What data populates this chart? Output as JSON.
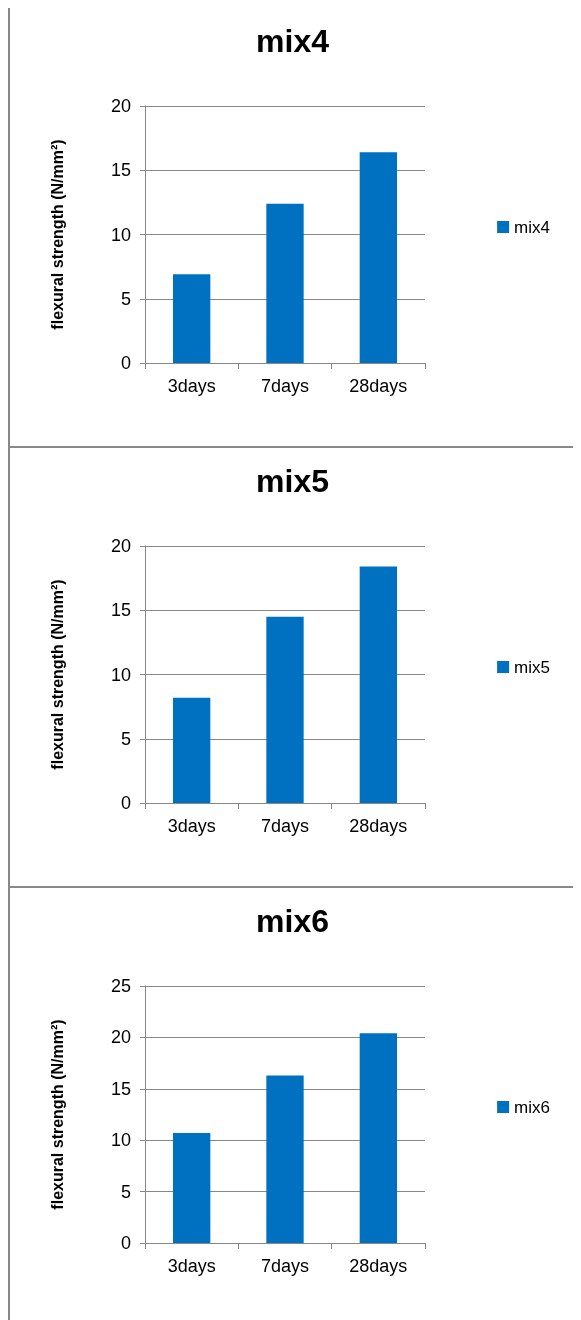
{
  "chart_data": [
    {
      "type": "bar",
      "title": "mix4",
      "ylabel": "flexural strength (N/mm²)",
      "categories": [
        "3days",
        "7days",
        "28days"
      ],
      "series": [
        {
          "name": "mix4",
          "color": "#0070c0",
          "values": [
            6.9,
            12.4,
            16.4
          ]
        }
      ],
      "ylim": [
        0,
        20
      ],
      "yticks": [
        0,
        5,
        10,
        15,
        20
      ],
      "grid": "y",
      "legend": "right"
    },
    {
      "type": "bar",
      "title": "mix5",
      "ylabel": "flexural strength (N/mm²)",
      "categories": [
        "3days",
        "7days",
        "28days"
      ],
      "series": [
        {
          "name": "mix5",
          "color": "#0070c0",
          "values": [
            8.2,
            14.5,
            18.4
          ]
        }
      ],
      "ylim": [
        0,
        20
      ],
      "yticks": [
        0,
        5,
        10,
        15,
        20
      ],
      "grid": "y",
      "legend": "right"
    },
    {
      "type": "bar",
      "title": "mix6",
      "ylabel": "flexural strength (N/mm²)",
      "categories": [
        "3days",
        "7days",
        "28days"
      ],
      "series": [
        {
          "name": "mix6",
          "color": "#0070c0",
          "values": [
            10.7,
            16.3,
            20.4
          ]
        }
      ],
      "ylim": [
        0,
        25
      ],
      "yticks": [
        0,
        5,
        10,
        15,
        20,
        25
      ],
      "grid": "y",
      "legend": "right"
    }
  ]
}
